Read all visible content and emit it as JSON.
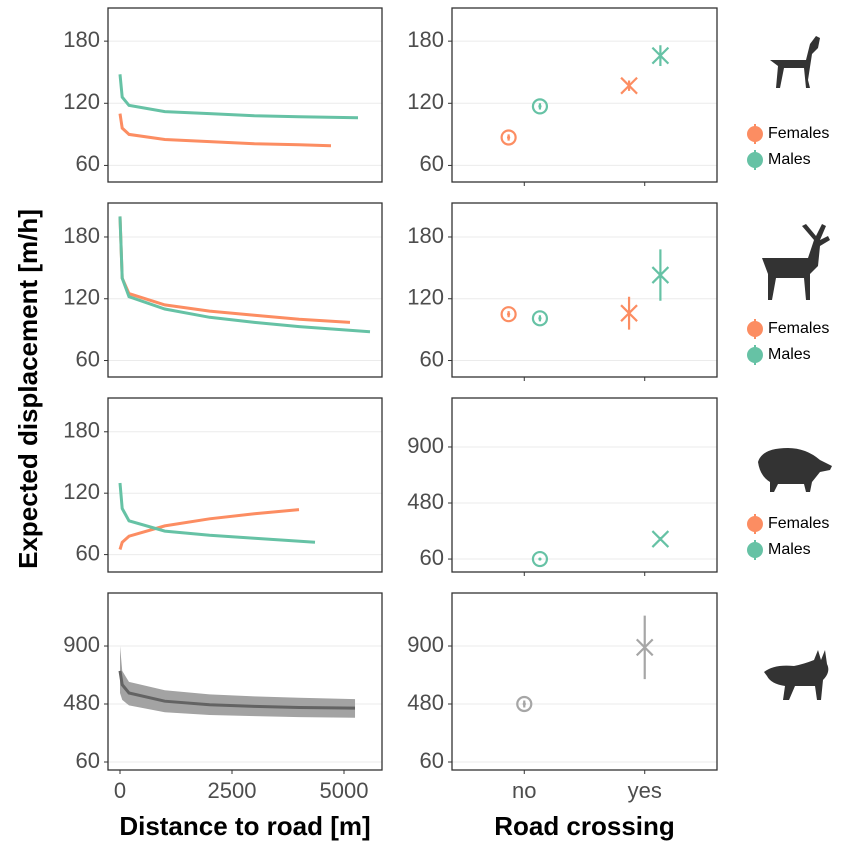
{
  "chart_data": [
    {
      "type": "line",
      "ylabel": "Expected displacement [m/h]",
      "xlim": [
        -268,
        5848
      ],
      "ylim": [
        44,
        212
      ],
      "yticks": [
        60,
        120,
        180
      ],
      "grid": true,
      "series": [
        {
          "color": "#fc8d62",
          "x": [
            0,
            50,
            200,
            1000,
            2000,
            3000,
            4000,
            4710
          ],
          "values": [
            110,
            96,
            90,
            85,
            83,
            81,
            80,
            79
          ]
        },
        {
          "color": "#66c2a5",
          "x": [
            0,
            50,
            200,
            1000,
            2000,
            3000,
            4000,
            5312
          ],
          "values": [
            148,
            126,
            118,
            112,
            110,
            108,
            107,
            106
          ]
        }
      ]
    },
    {
      "type": "errorbar",
      "categories": [
        null,
        null
      ],
      "markers": [
        "circle",
        "cross"
      ],
      "xlim": [
        0.4,
        2.6
      ],
      "ylim": [
        44,
        212
      ],
      "yticks": [
        60,
        120,
        180
      ],
      "grid": true,
      "series": [
        {
          "name": "Females",
          "color": "#fc8d62",
          "values": [
            87,
            137
          ],
          "errors": [
            3,
            5
          ]
        },
        {
          "name": "Males",
          "color": "#66c2a5",
          "values": [
            117,
            166
          ],
          "errors": [
            3,
            10
          ]
        }
      ]
    },
    {
      "type": "line",
      "xlim": [
        -268,
        5848
      ],
      "ylim": [
        44,
        213
      ],
      "yticks": [
        60,
        120,
        180
      ],
      "grid": true,
      "series": [
        {
          "color": "#fc8d62",
          "x": [
            0,
            50,
            200,
            1000,
            2000,
            3000,
            4000,
            5134
          ],
          "values": [
            200,
            140,
            125,
            114,
            108,
            104,
            100,
            97
          ]
        },
        {
          "color": "#66c2a5",
          "x": [
            0,
            50,
            200,
            1000,
            2000,
            3000,
            4000,
            5580
          ],
          "values": [
            200,
            140,
            122,
            110,
            102,
            97,
            93,
            88
          ]
        }
      ]
    },
    {
      "type": "errorbar",
      "categories": [
        null,
        null
      ],
      "markers": [
        "circle",
        "cross"
      ],
      "xlim": [
        0.4,
        2.6
      ],
      "ylim": [
        44,
        213
      ],
      "yticks": [
        60,
        120,
        180
      ],
      "grid": true,
      "series": [
        {
          "name": "Females",
          "color": "#fc8d62",
          "values": [
            105,
            106
          ],
          "errors": [
            3,
            16
          ]
        },
        {
          "name": "Males",
          "color": "#66c2a5",
          "values": [
            101,
            143
          ],
          "errors": [
            3,
            25
          ]
        }
      ]
    },
    {
      "type": "line",
      "xlim": [
        -268,
        5848
      ],
      "ylim": [
        43,
        213
      ],
      "yticks": [
        60,
        120,
        180
      ],
      "grid": true,
      "series": [
        {
          "color": "#fc8d62",
          "x": [
            0,
            50,
            200,
            1000,
            2000,
            3000,
            3996
          ],
          "values": [
            65,
            72,
            78,
            88,
            95,
            100,
            104
          ]
        },
        {
          "color": "#66c2a5",
          "x": [
            0,
            50,
            200,
            1000,
            2000,
            3000,
            4353
          ],
          "values": [
            130,
            105,
            93,
            83,
            79,
            76,
            72
          ]
        }
      ]
    },
    {
      "type": "errorbar",
      "categories": [
        null,
        null
      ],
      "markers": [
        "circle",
        "cross"
      ],
      "xlim": [
        0.4,
        2.6
      ],
      "ylim": [
        -37,
        1267
      ],
      "yticks": [
        60,
        480,
        900
      ],
      "grid": true,
      "series": [
        {
          "name": "Females",
          "color": "#fc8d62",
          "values": [
            null,
            null
          ],
          "errors": [
            null,
            null
          ]
        },
        {
          "name": "Males",
          "color": "#66c2a5",
          "values": [
            60,
            210
          ],
          "errors": [
            8,
            15
          ]
        }
      ]
    },
    {
      "type": "ribbon",
      "xlabel": "Distance to road [m]",
      "xlim": [
        -268,
        5848
      ],
      "xticks": [
        0,
        2500,
        5000
      ],
      "ylim": [
        2,
        1284
      ],
      "yticks": [
        60,
        480,
        900
      ],
      "grid": true,
      "series": [
        {
          "color": "#636363",
          "ribbon_color": "#a3a3a3",
          "x": [
            0,
            50,
            200,
            1000,
            2000,
            3000,
            4000,
            5246
          ],
          "values": [
            720,
            620,
            560,
            500,
            475,
            463,
            455,
            450
          ],
          "upper": [
            900,
            720,
            640,
            580,
            550,
            535,
            525,
            515
          ],
          "lower": [
            560,
            510,
            470,
            420,
            400,
            392,
            385,
            380
          ]
        }
      ]
    },
    {
      "type": "errorbar",
      "xlabel": "Road crossing",
      "categories": [
        "no",
        "yes"
      ],
      "markers": [
        "circle",
        "cross"
      ],
      "xlim": [
        0.4,
        2.6
      ],
      "ylim": [
        2,
        1284
      ],
      "yticks": [
        60,
        480,
        900
      ],
      "grid": true,
      "series": [
        {
          "color": "#a6a6a6",
          "values": [
            480,
            890
          ],
          "errors": [
            25,
            230
          ]
        }
      ]
    }
  ]
}
